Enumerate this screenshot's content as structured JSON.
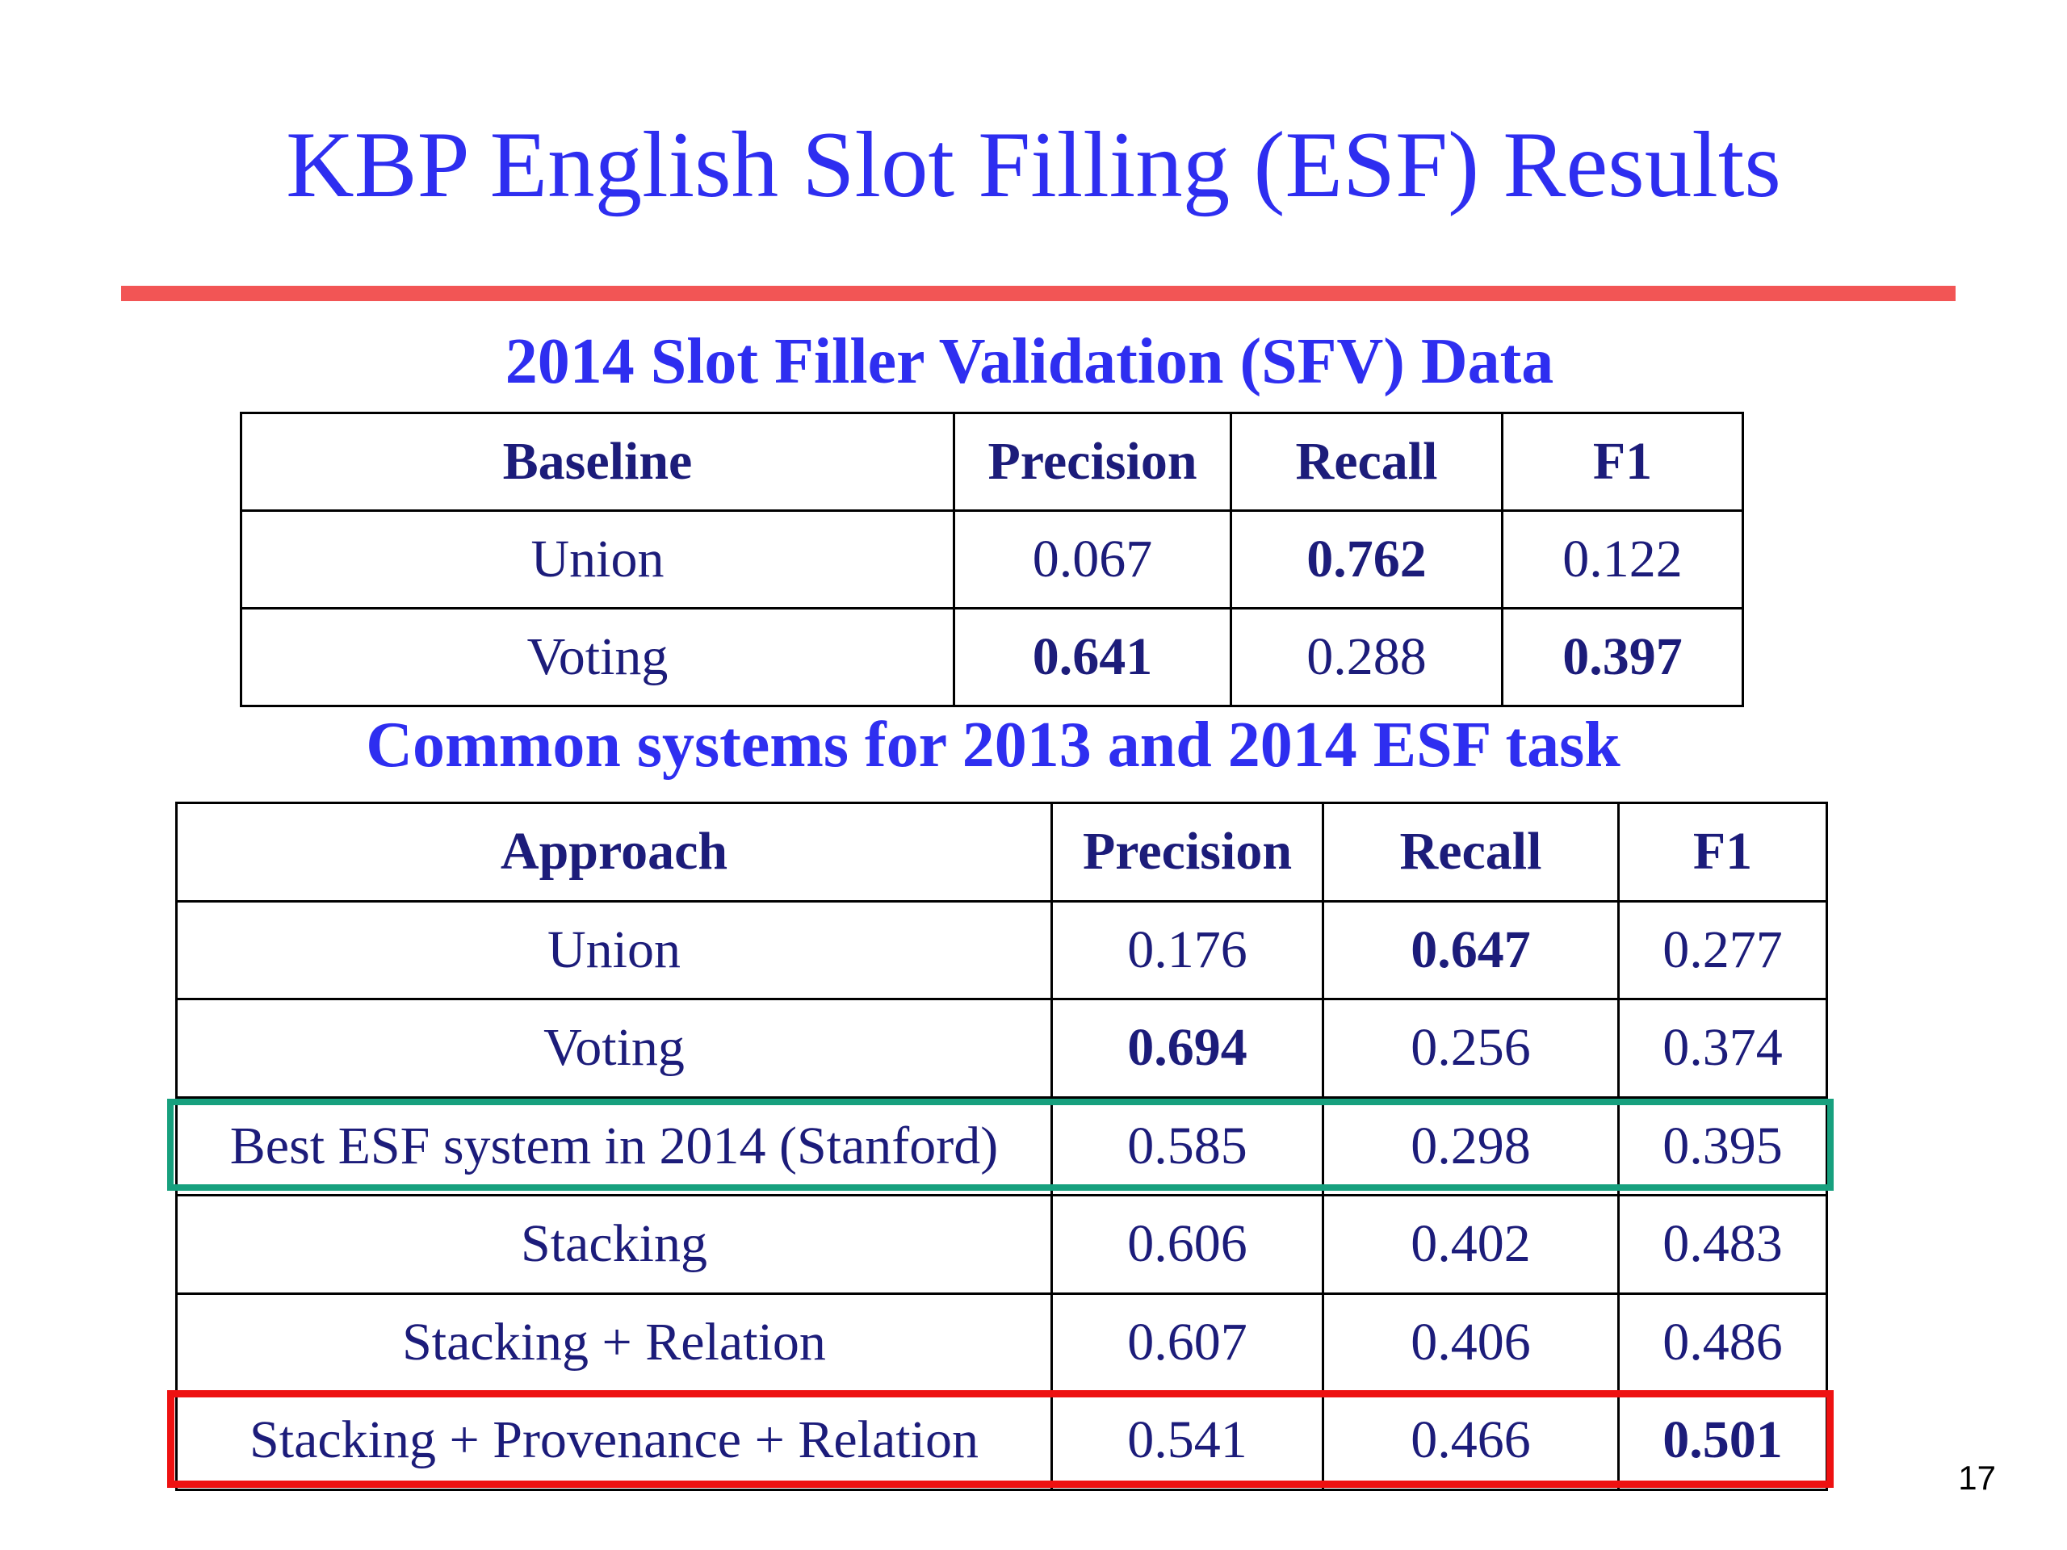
{
  "slide": {
    "title": "KBP English Slot Filling (ESF) Results",
    "page_number": "17",
    "colors": {
      "title": "#2e2ef0",
      "rule": "#f25555",
      "table_text": "#1c1c7a",
      "highlight_green": "#17a07e",
      "highlight_red": "#ee1111"
    }
  },
  "sfv_section": {
    "title": "2014 Slot Filler Validation (SFV) Data",
    "headers": [
      "Baseline",
      "Precision",
      "Recall",
      "F1"
    ],
    "rows": [
      {
        "cells": [
          "Union",
          "0.067",
          "0.762",
          "0.122"
        ],
        "bold": [
          false,
          false,
          true,
          false
        ]
      },
      {
        "cells": [
          "Voting",
          "0.641",
          "0.288",
          "0.397"
        ],
        "bold": [
          false,
          true,
          false,
          true
        ]
      }
    ]
  },
  "esf_section": {
    "title": "Common systems for 2013 and 2014 ESF task",
    "headers": [
      "Approach",
      "Precision",
      "Recall",
      "F1"
    ],
    "rows": [
      {
        "cells": [
          "Union",
          "0.176",
          "0.647",
          "0.277"
        ],
        "bold": [
          false,
          false,
          true,
          false
        ]
      },
      {
        "cells": [
          "Voting",
          "0.694",
          "0.256",
          "0.374"
        ],
        "bold": [
          false,
          true,
          false,
          false
        ]
      },
      {
        "cells": [
          "Best ESF system in 2014 (Stanford)",
          "0.585",
          "0.298",
          "0.395"
        ],
        "bold": [
          false,
          false,
          false,
          false
        ],
        "highlight": "green"
      },
      {
        "cells": [
          "Stacking",
          "0.606",
          "0.402",
          "0.483"
        ],
        "bold": [
          false,
          false,
          false,
          false
        ]
      },
      {
        "cells": [
          "Stacking + Relation",
          "0.607",
          "0.406",
          "0.486"
        ],
        "bold": [
          false,
          false,
          false,
          false
        ]
      },
      {
        "cells": [
          "Stacking + Provenance + Relation",
          "0.541",
          "0.466",
          "0.501"
        ],
        "bold": [
          false,
          false,
          false,
          true
        ],
        "highlight": "red"
      }
    ]
  }
}
